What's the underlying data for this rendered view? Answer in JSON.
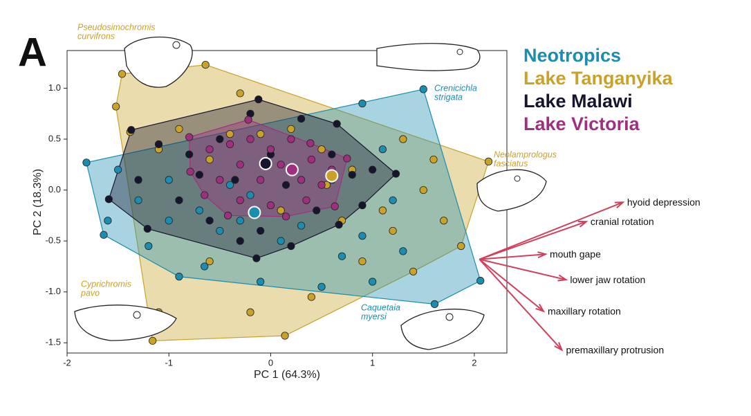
{
  "chart_data": {
    "type": "scatter",
    "panel": "A",
    "x_label": "PC 1 (64.3%)",
    "y_label": "PC 2 (18.3%)",
    "xlim": [
      -2,
      2.32
    ],
    "ylim": [
      -1.6,
      1.37
    ],
    "xticks": [
      -2,
      -1,
      0,
      1,
      2
    ],
    "yticks": [
      {
        "value": 1,
        "label": "1.0"
      },
      0.5,
      {
        "value": 0,
        "label": "0.0"
      },
      -0.5,
      {
        "value": -1,
        "label": "-1.0"
      },
      -1.5
    ],
    "series": [
      {
        "name": "Lake Tanganyika",
        "color": "#c9a227",
        "x": [
          -1.46,
          -0.64,
          2.14,
          1.87,
          0.14,
          -1.16,
          -1.52,
          -1.38,
          -1.1,
          -0.9,
          -0.6,
          -0.3,
          -0.1,
          0.2,
          0.5,
          0.8,
          1.1,
          1.3,
          1.6,
          1.7,
          1.4,
          0.9,
          0.4,
          -0.2,
          -0.6,
          0.1,
          0.7,
          -1.1,
          1.2,
          1.5,
          -0.4,
          0.55
        ],
        "y": [
          1.14,
          1.23,
          0.28,
          -0.55,
          -1.43,
          -1.48,
          0.82,
          0.57,
          0.4,
          0.6,
          0.3,
          0.95,
          0.55,
          0.6,
          0.4,
          0.2,
          -0.2,
          0.5,
          0.3,
          -0.3,
          -0.8,
          -0.7,
          -1.05,
          -1.2,
          -0.7,
          -0.2,
          -0.3,
          -1.2,
          -0.4,
          0.0,
          0.55,
          0.05
        ],
        "centroid": [
          0.6,
          0.14
        ]
      },
      {
        "name": "Neotropics",
        "color": "#1a8db0",
        "x": [
          -1.81,
          1.5,
          2.06,
          1.61,
          -1.64,
          -1.5,
          -1.6,
          -1.3,
          -1.2,
          -1.0,
          -0.9,
          -0.7,
          -0.65,
          -0.5,
          -0.3,
          -0.2,
          -0.1,
          0.1,
          0.3,
          0.5,
          0.6,
          0.9,
          1.0,
          1.2,
          1.3,
          0.9,
          -1.0,
          -0.4,
          0.7,
          1.1
        ],
        "y": [
          0.27,
          0.99,
          -0.89,
          -1.12,
          -0.44,
          0.2,
          -0.3,
          -0.1,
          -0.55,
          -0.3,
          -0.85,
          -0.2,
          -0.75,
          -0.4,
          -0.3,
          -0.05,
          -0.9,
          -0.5,
          -0.35,
          -0.95,
          0.1,
          -0.45,
          -0.9,
          -0.1,
          -0.6,
          0.85,
          0.1,
          0.05,
          -0.65,
          0.4
        ],
        "centroid": [
          -0.16,
          -0.22
        ]
      },
      {
        "name": "Lake Malawi",
        "color": "#15152e",
        "x": [
          -1.37,
          -0.12,
          0.65,
          1.23,
          0.67,
          -0.14,
          -1.21,
          -1.59,
          -1.3,
          -1.1,
          -0.9,
          -0.8,
          -0.6,
          -0.5,
          -0.35,
          -0.2,
          -0.1,
          0.0,
          0.15,
          0.3,
          0.45,
          0.6,
          0.8,
          1.0,
          0.9,
          -0.3,
          0.2,
          -0.7
        ],
        "y": [
          0.59,
          0.89,
          0.65,
          0.16,
          -0.34,
          -0.67,
          -0.38,
          -0.09,
          0.1,
          0.45,
          -0.1,
          0.35,
          -0.3,
          0.5,
          0.1,
          0.75,
          -0.4,
          0.35,
          0.05,
          0.7,
          -0.2,
          0.35,
          0.15,
          0.2,
          -0.15,
          -0.5,
          -0.55,
          0.15
        ],
        "centroid": [
          -0.05,
          0.26
        ]
      },
      {
        "name": "Lake Victoria",
        "color": "#a0307f",
        "x": [
          -0.8,
          -0.22,
          0.39,
          0.75,
          0.63,
          0.15,
          -0.42,
          -0.79,
          -0.6,
          -0.5,
          -0.4,
          -0.3,
          -0.2,
          -0.1,
          0.0,
          0.1,
          0.2,
          0.3,
          0.4,
          0.5,
          0.6,
          -0.3,
          0.0,
          0.35,
          -0.65
        ],
        "y": [
          0.52,
          0.69,
          0.46,
          0.31,
          -0.16,
          -0.26,
          -0.25,
          0.18,
          0.4,
          0.1,
          0.45,
          0.25,
          0.5,
          0.1,
          0.4,
          0.25,
          0.5,
          0.1,
          0.3,
          0.05,
          0.2,
          -0.1,
          -0.15,
          -0.1,
          -0.05
        ],
        "centroid": [
          0.21,
          0.2
        ]
      }
    ],
    "legend_order": [
      1,
      0,
      2,
      3
    ],
    "annotations": [
      {
        "text": [
          "Pseudosimochromis",
          "curvifrons"
        ],
        "color": "#c9a227"
      },
      {
        "text": [
          "Crenicichla",
          "strigata"
        ],
        "color": "#1a8db0"
      },
      {
        "text": [
          "Neolamprologus",
          "fasciatus"
        ],
        "color": "#c9a227"
      },
      {
        "text": [
          "Cyprichromis",
          "pavo"
        ],
        "color": "#c9a227"
      },
      {
        "text": [
          "Caquetaia",
          "myersi"
        ],
        "color": "#1a8db0"
      }
    ],
    "loadings_origin": [
      2.05,
      -0.68
    ],
    "loadings_color": "#d0405a",
    "loadings": [
      {
        "name": "hyoid depression",
        "x": 1.41,
        "y": 0.56
      },
      {
        "name": "cranial rotation",
        "x": 1.05,
        "y": 0.37
      },
      {
        "name": "mouth gape",
        "x": 0.65,
        "y": 0.05
      },
      {
        "name": "lower jaw rotation",
        "x": 0.85,
        "y": -0.2
      },
      {
        "name": "maxillary rotation",
        "x": 0.63,
        "y": -0.51
      },
      {
        "name": "premaxillary protrusion",
        "x": 0.81,
        "y": -0.89
      }
    ]
  }
}
